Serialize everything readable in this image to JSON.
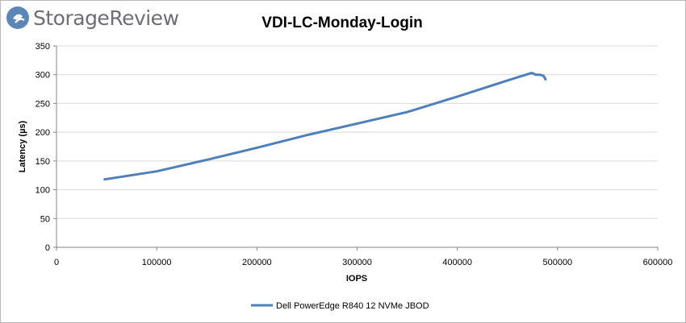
{
  "brand": {
    "name": "StorageReview",
    "colors": {
      "mark": "#5b86b8",
      "text": "#6e6e72"
    }
  },
  "chart_data": {
    "type": "line",
    "title": "VDI-LC-Monday-Login",
    "xlabel": "IOPS",
    "ylabel": "Latency (µs)",
    "xlim": [
      0,
      600000
    ],
    "ylim": [
      0,
      350
    ],
    "x_ticks": [
      0,
      100000,
      200000,
      300000,
      400000,
      500000,
      600000
    ],
    "y_ticks": [
      0,
      50,
      100,
      150,
      200,
      250,
      300,
      350
    ],
    "grid": "horizontal",
    "legend_position": "bottom",
    "series": [
      {
        "name": "Dell PowerEdge R840 12 NVMe JBOD",
        "color": "#4f7fbb",
        "x": [
          48000,
          100000,
          150000,
          200000,
          250000,
          300000,
          350000,
          400000,
          450000,
          474000,
          476000,
          478000,
          482000,
          486000,
          488000
        ],
        "y": [
          118,
          132,
          152,
          173,
          195,
          215,
          235,
          262,
          290,
          303,
          302,
          300,
          300,
          298,
          292
        ]
      }
    ]
  }
}
